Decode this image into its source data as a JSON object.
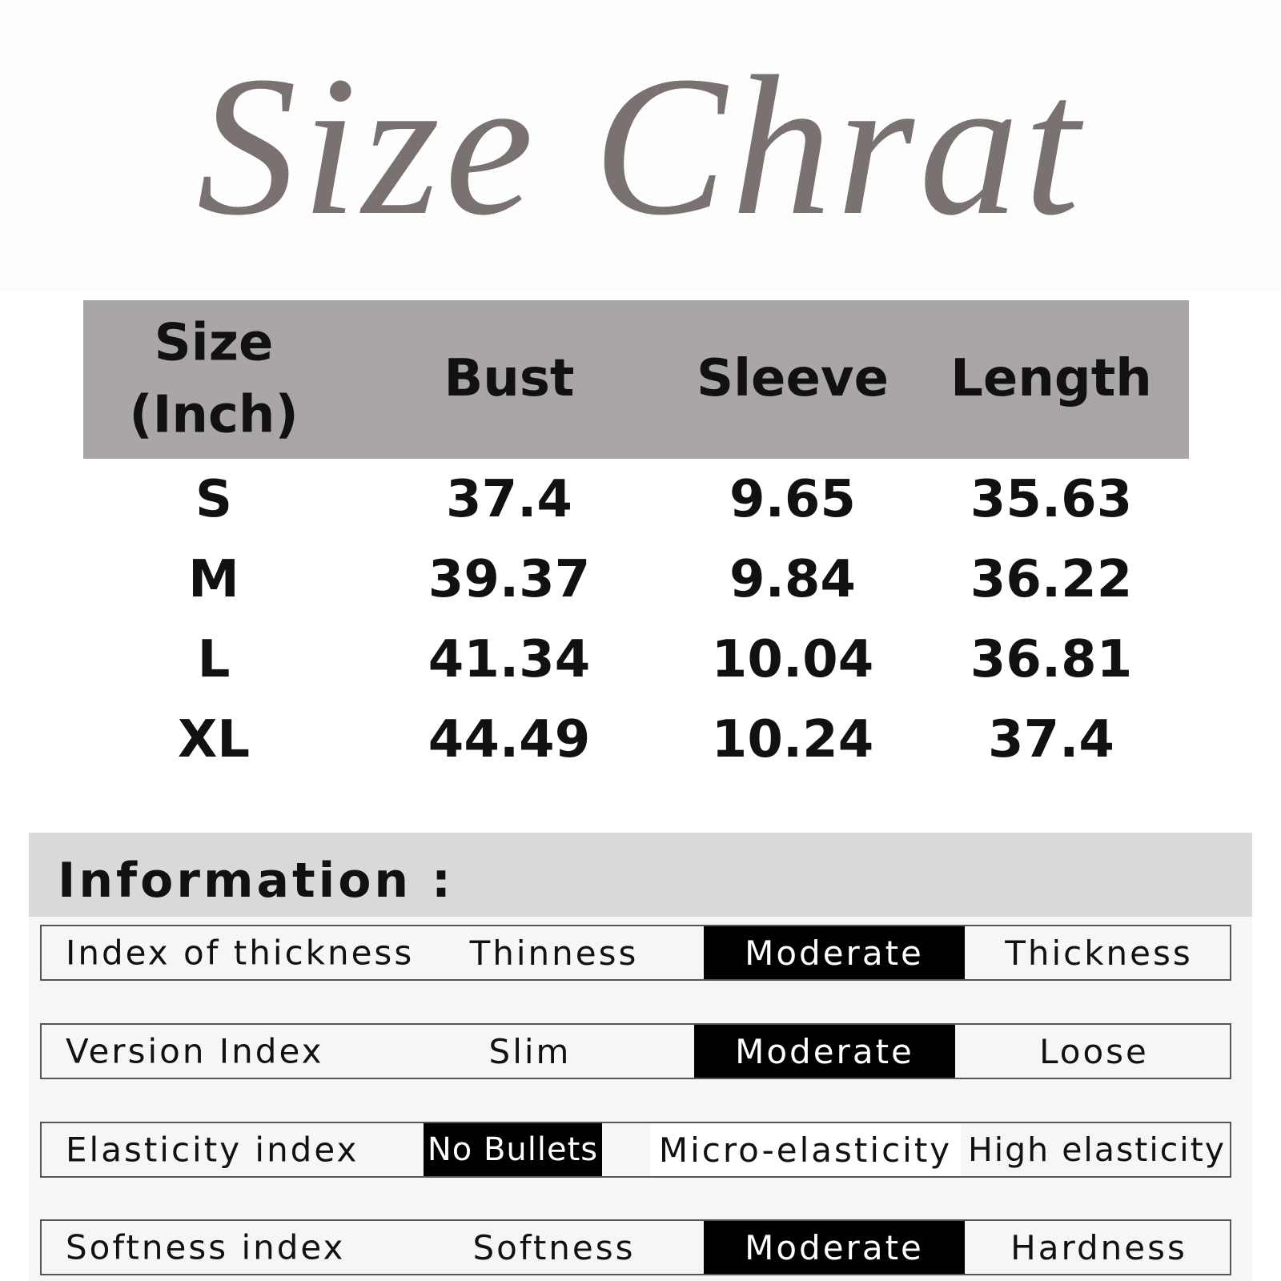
{
  "title": "Size Chrat",
  "table": {
    "headers": [
      "Size\n(Inch)",
      "Bust",
      "Sleeve",
      "Length"
    ],
    "rows": [
      [
        "S",
        37.4,
        9.65,
        35.63
      ],
      [
        "M",
        39.37,
        9.84,
        36.22
      ],
      [
        "L",
        41.34,
        10.04,
        36.81
      ],
      [
        "XL",
        44.49,
        10.24,
        37.4
      ]
    ]
  },
  "information": {
    "title": "Information :",
    "rows": [
      {
        "label": "Index of thickness",
        "options": [
          "Thinness",
          "Moderate",
          "Thickness"
        ]
      },
      {
        "label": "Version Index",
        "options": [
          "Slim",
          "Moderate",
          "Loose"
        ]
      },
      {
        "label": "Elasticity index",
        "options": [
          "No Bullets",
          "Micro-elasticity",
          "High elasticity"
        ]
      },
      {
        "label": "Softness index",
        "options": [
          "Softness",
          "Moderate",
          "Hardness"
        ]
      }
    ]
  }
}
